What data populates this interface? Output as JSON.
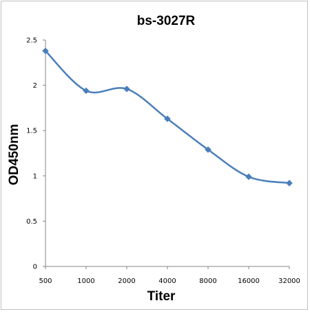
{
  "chart_data": {
    "type": "line",
    "title": "bs-3027R",
    "xlabel": "Titer",
    "ylabel": "OD450nm",
    "categories": [
      "500",
      "1000",
      "2000",
      "4000",
      "8000",
      "16000",
      "32000"
    ],
    "series": [
      {
        "values": [
          2.38,
          1.94,
          1.96,
          1.63,
          1.29,
          0.99,
          0.92
        ]
      }
    ],
    "ylim": [
      0,
      2.5
    ],
    "yticks": [
      "0",
      "0.5",
      "1",
      "1.5",
      "2",
      "2.5"
    ],
    "grid": false,
    "legend": "none",
    "line_color": "#4a7ebb",
    "marker": "diamond"
  }
}
